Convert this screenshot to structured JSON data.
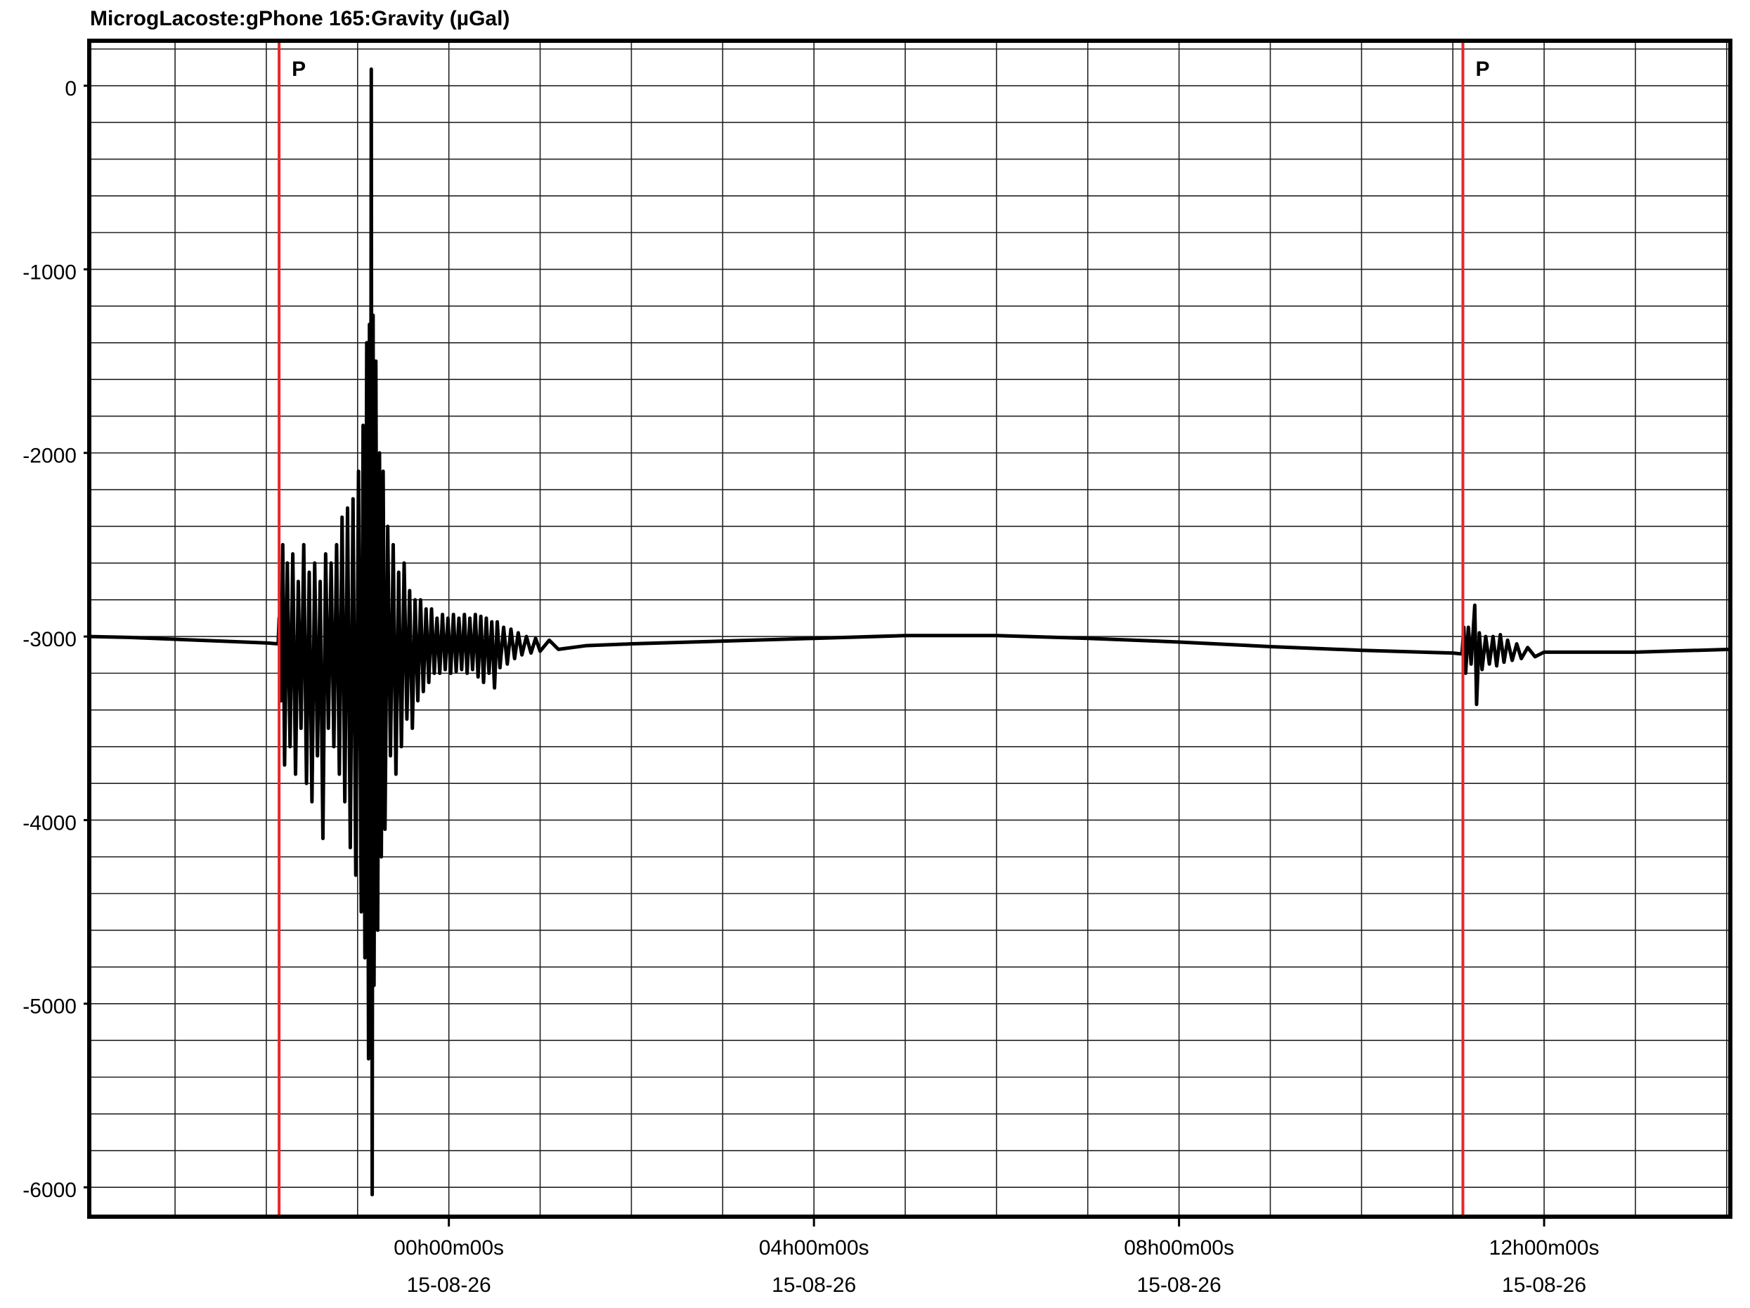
{
  "chart_data": {
    "type": "line",
    "title": "MicrogLacoste:gPhone 165:Gravity (µGal)",
    "color": "#000000",
    "xlim": [
      -3.94,
      14.04
    ],
    "ylim": [
      -6160,
      245
    ],
    "xticks": [
      {
        "value": 0,
        "label": "00h00m00s",
        "date": "15-08-26"
      },
      {
        "value": 4,
        "label": "04h00m00s",
        "date": "15-08-26"
      },
      {
        "value": 8,
        "label": "08h00m00s",
        "date": "15-08-26"
      },
      {
        "value": 12,
        "label": "12h00m00s",
        "date": "15-08-26"
      }
    ],
    "x_grid": [
      -3,
      -2,
      -1,
      0,
      1,
      2,
      3,
      4,
      5,
      6,
      7,
      8,
      9,
      10,
      11,
      12,
      13,
      14
    ],
    "yticks": [
      0,
      -1000,
      -2000,
      -3000,
      -4000,
      -5000,
      -6000
    ],
    "y_grid": [
      200,
      0,
      -200,
      -400,
      -600,
      -800,
      -1000,
      -1200,
      -1400,
      -1600,
      -1800,
      -2000,
      -2200,
      -2400,
      -2600,
      -2800,
      -3000,
      -3200,
      -3400,
      -3600,
      -3800,
      -4000,
      -4200,
      -4400,
      -4600,
      -4800,
      -5000,
      -5200,
      -5400,
      -5600,
      -5800,
      -6000
    ],
    "grid": true,
    "markers": [
      {
        "x": -1.86,
        "label": "P",
        "color": "#e8262b"
      },
      {
        "x": 11.11,
        "label": "P",
        "color": "#e8262b"
      }
    ],
    "x": [
      -3.94,
      -3.5,
      -3.0,
      -2.5,
      -2.0,
      -1.87,
      -1.86,
      -1.84,
      -1.82,
      -1.8,
      -1.77,
      -1.74,
      -1.71,
      -1.68,
      -1.65,
      -1.62,
      -1.59,
      -1.56,
      -1.53,
      -1.5,
      -1.47,
      -1.44,
      -1.41,
      -1.38,
      -1.35,
      -1.32,
      -1.29,
      -1.26,
      -1.23,
      -1.2,
      -1.17,
      -1.14,
      -1.11,
      -1.08,
      -1.05,
      -1.02,
      -0.99,
      -0.96,
      -0.94,
      -0.92,
      -0.9,
      -0.88,
      -0.87,
      -0.86,
      -0.85,
      -0.84,
      -0.83,
      -0.82,
      -0.8,
      -0.78,
      -0.76,
      -0.74,
      -0.72,
      -0.7,
      -0.67,
      -0.64,
      -0.61,
      -0.58,
      -0.55,
      -0.52,
      -0.49,
      -0.46,
      -0.43,
      -0.4,
      -0.37,
      -0.34,
      -0.31,
      -0.28,
      -0.25,
      -0.22,
      -0.19,
      -0.16,
      -0.13,
      -0.1,
      -0.07,
      -0.04,
      -0.01,
      0.02,
      0.05,
      0.08,
      0.11,
      0.14,
      0.17,
      0.2,
      0.23,
      0.26,
      0.29,
      0.32,
      0.35,
      0.38,
      0.41,
      0.44,
      0.47,
      0.5,
      0.53,
      0.56,
      0.6,
      0.64,
      0.68,
      0.72,
      0.76,
      0.8,
      0.85,
      0.9,
      0.95,
      1.0,
      1.1,
      1.2,
      1.5,
      2,
      3,
      4,
      5,
      6,
      7,
      8,
      9,
      10,
      11,
      11.1,
      11.12,
      11.14,
      11.17,
      11.2,
      11.24,
      11.26,
      11.29,
      11.32,
      11.36,
      11.4,
      11.44,
      11.48,
      11.52,
      11.56,
      11.6,
      11.65,
      11.7,
      11.75,
      11.82,
      11.9,
      12,
      13,
      14.04
    ],
    "values": [
      -3000,
      -3005,
      -3015,
      -3025,
      -3035,
      -3040,
      -2900,
      -3350,
      -2500,
      -3700,
      -2600,
      -3600,
      -2550,
      -3750,
      -2700,
      -3500,
      -2500,
      -3800,
      -2650,
      -3900,
      -2600,
      -3650,
      -2700,
      -4100,
      -2550,
      -3500,
      -2600,
      -3600,
      -2500,
      -3750,
      -2350,
      -3900,
      -2300,
      -4150,
      -2250,
      -4300,
      -2100,
      -4500,
      -1850,
      -4750,
      -1400,
      -5300,
      -1300,
      -4600,
      90,
      -6040,
      -1250,
      -4900,
      -1500,
      -4600,
      -2000,
      -4200,
      -2100,
      -4050,
      -2400,
      -3650,
      -2500,
      -3750,
      -2650,
      -3600,
      -2600,
      -3450,
      -2750,
      -3500,
      -2800,
      -3350,
      -2800,
      -3300,
      -2850,
      -3250,
      -2850,
      -3200,
      -2900,
      -3200,
      -2880,
      -3180,
      -2900,
      -3200,
      -2880,
      -3190,
      -2900,
      -3180,
      -2880,
      -3200,
      -2900,
      -3180,
      -2880,
      -3220,
      -2890,
      -3250,
      -2900,
      -3200,
      -2920,
      -3280,
      -2920,
      -3170,
      -2950,
      -3150,
      -2960,
      -3120,
      -2980,
      -3100,
      -3000,
      -3090,
      -3010,
      -3080,
      -3020,
      -3070,
      -3050,
      -3040,
      -3025,
      -3010,
      -2995,
      -2995,
      -3010,
      -3030,
      -3055,
      -3075,
      -3090,
      -3095,
      -2950,
      -3200,
      -2950,
      -3150,
      -2830,
      -3370,
      -2980,
      -3180,
      -3000,
      -3150,
      -3000,
      -3160,
      -2990,
      -3140,
      -3020,
      -3130,
      -3040,
      -3120,
      -3060,
      -3110,
      -3085,
      -3085,
      -3070
    ]
  }
}
